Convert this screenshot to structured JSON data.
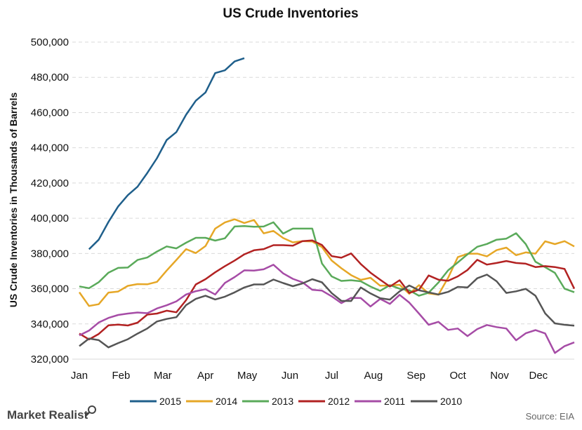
{
  "source": "Source: EIA",
  "brand": "Market Realist",
  "chart_data": {
    "type": "line",
    "title": "US Crude Inventories",
    "xlabel": "",
    "ylabel": "US Crude Inventories in Thousands of Barrels",
    "ylim": [
      320000,
      500000
    ],
    "xlim": [
      1,
      52
    ],
    "yticks": [
      "320,000",
      "340,000",
      "360,000",
      "380,000",
      "400,000",
      "420,000",
      "440,000",
      "460,000",
      "480,000",
      "500,000"
    ],
    "yticks_values": [
      320000,
      340000,
      360000,
      380000,
      400000,
      420000,
      440000,
      460000,
      480000,
      500000
    ],
    "months": [
      "Jan",
      "Feb",
      "Mar",
      "Apr",
      "May",
      "Jun",
      "Jul",
      "Aug",
      "Sep",
      "Oct",
      "Nov",
      "Dec"
    ],
    "month_weeks": [
      1,
      5.3,
      9.6,
      14,
      18.3,
      22.7,
      27,
      31.3,
      35.7,
      40,
      44.3,
      48.3
    ],
    "grid": "horizontal",
    "legend_position": "bottom",
    "series": [
      {
        "name": "2015",
        "color": "#1f5f8b",
        "x": [
          2,
          3,
          4,
          5,
          6,
          7,
          8,
          9,
          10,
          11,
          12,
          13,
          14,
          15,
          16,
          17,
          18
        ],
        "y": [
          382400,
          387800,
          397900,
          406700,
          413100,
          417900,
          425700,
          434100,
          444400,
          448900,
          458800,
          466700,
          471400,
          482400,
          484000,
          489000,
          490900
        ]
      },
      {
        "name": "2014",
        "color": "#e6a727",
        "x": [
          1,
          2,
          3,
          4,
          5,
          6,
          7,
          8,
          9,
          10,
          11,
          12,
          13,
          14,
          15,
          16,
          17,
          18,
          19,
          20,
          21,
          22,
          23,
          24,
          25,
          26,
          27,
          28,
          29,
          30,
          31,
          32,
          33,
          34,
          35,
          36,
          37,
          38,
          39,
          40,
          41,
          42,
          43,
          44,
          45,
          46,
          47,
          48,
          49,
          50,
          51,
          52
        ],
        "y": [
          358000,
          350200,
          351200,
          357800,
          358400,
          361600,
          362600,
          362500,
          363900,
          370300,
          376300,
          382500,
          380200,
          384200,
          394100,
          397600,
          399400,
          397300,
          399000,
          391400,
          392800,
          388800,
          386300,
          387000,
          386800,
          383600,
          376000,
          371600,
          367700,
          365000,
          366200,
          361700,
          361800,
          362200,
          357100,
          362000,
          357300,
          356600,
          366200,
          377900,
          379800,
          379900,
          378400,
          381900,
          383300,
          379000,
          380600,
          379900,
          386900,
          385300,
          387000,
          384000
        ]
      },
      {
        "name": "2013",
        "color": "#5aaa5a",
        "x": [
          1,
          2,
          3,
          4,
          5,
          6,
          7,
          8,
          9,
          10,
          11,
          12,
          13,
          14,
          15,
          16,
          17,
          18,
          19,
          20,
          21,
          22,
          23,
          24,
          25,
          26,
          27,
          28,
          29,
          30,
          31,
          32,
          33,
          34,
          35,
          36,
          37,
          38,
          39,
          40,
          41,
          42,
          43,
          44,
          45,
          46,
          47,
          48,
          49,
          50,
          51,
          52
        ],
        "y": [
          361300,
          360300,
          363700,
          369100,
          371800,
          372000,
          376300,
          377700,
          381100,
          384000,
          382900,
          386100,
          388900,
          388900,
          387300,
          388600,
          395300,
          395600,
          395200,
          395300,
          397700,
          391300,
          394100,
          394100,
          394100,
          374300,
          367000,
          364400,
          364800,
          364200,
          361200,
          358800,
          362000,
          360000,
          359100,
          356000,
          357700,
          363500,
          370400,
          374900,
          379500,
          383800,
          385400,
          387800,
          388400,
          391500,
          385300,
          375300,
          372200,
          369000,
          360000,
          358000
        ]
      },
      {
        "name": "2012",
        "color": "#b22222",
        "x": [
          1,
          2,
          3,
          4,
          5,
          6,
          7,
          8,
          9,
          10,
          11,
          12,
          13,
          14,
          15,
          16,
          17,
          18,
          19,
          20,
          21,
          22,
          23,
          24,
          25,
          26,
          27,
          28,
          29,
          30,
          31,
          32,
          33,
          34,
          35,
          36,
          37,
          38,
          39,
          40,
          41,
          42,
          43,
          44,
          45,
          46,
          47,
          48,
          49,
          50,
          51,
          52
        ],
        "y": [
          334500,
          331200,
          334300,
          339200,
          339600,
          339100,
          340700,
          345300,
          345900,
          347500,
          346600,
          353500,
          362400,
          365400,
          369300,
          372800,
          376000,
          379500,
          381800,
          382500,
          384700,
          384700,
          384400,
          387000,
          387400,
          384800,
          378500,
          377600,
          380000,
          374000,
          369100,
          365100,
          361200,
          364800,
          357600,
          359400,
          367500,
          365100,
          364500,
          367000,
          370600,
          376400,
          373700,
          374600,
          375700,
          374600,
          374200,
          372300,
          372800,
          372300,
          371200,
          360000
        ]
      },
      {
        "name": "2011",
        "color": "#a64ca6",
        "x": [
          1,
          2,
          3,
          4,
          5,
          6,
          7,
          8,
          9,
          10,
          11,
          12,
          13,
          14,
          15,
          16,
          17,
          18,
          19,
          20,
          21,
          22,
          23,
          24,
          25,
          26,
          27,
          28,
          29,
          30,
          31,
          32,
          33,
          34,
          35,
          36,
          37,
          38,
          39,
          40,
          41,
          42,
          43,
          44,
          45,
          46,
          47,
          48,
          49,
          50,
          51,
          52
        ],
        "y": [
          333500,
          336200,
          340800,
          343400,
          345100,
          345900,
          346500,
          346100,
          348800,
          350600,
          352800,
          356700,
          358600,
          359700,
          356700,
          363300,
          366600,
          370400,
          370300,
          371000,
          373600,
          368700,
          365600,
          363600,
          359400,
          358900,
          355700,
          351800,
          354800,
          354700,
          349900,
          354200,
          351400,
          356500,
          352100,
          345900,
          339500,
          341200,
          336600,
          337400,
          333100,
          337100,
          339400,
          338200,
          337400,
          330700,
          334700,
          336500,
          334600,
          323500,
          327400,
          329500
        ]
      },
      {
        "name": "2010",
        "color": "#555555",
        "x": [
          1,
          2,
          3,
          4,
          5,
          6,
          7,
          8,
          9,
          10,
          11,
          12,
          13,
          14,
          15,
          16,
          17,
          18,
          19,
          20,
          21,
          22,
          23,
          24,
          25,
          26,
          27,
          28,
          29,
          30,
          31,
          32,
          33,
          34,
          35,
          36,
          37,
          38,
          39,
          40,
          41,
          42,
          43,
          44,
          45,
          46,
          47,
          48,
          49,
          50,
          51,
          52
        ],
        "y": [
          327400,
          331700,
          330800,
          326700,
          329100,
          331300,
          334500,
          337400,
          341400,
          342800,
          343800,
          350700,
          354200,
          356000,
          353900,
          355500,
          357900,
          360700,
          362400,
          362400,
          365200,
          363200,
          361400,
          363000,
          365400,
          363600,
          357500,
          353100,
          353000,
          360700,
          357300,
          354600,
          353800,
          358500,
          361800,
          359100,
          357900,
          356700,
          358200,
          361000,
          360700,
          365900,
          368000,
          364200,
          357600,
          358500,
          359900,
          356000,
          346000,
          340300,
          339500,
          339000
        ]
      }
    ]
  }
}
